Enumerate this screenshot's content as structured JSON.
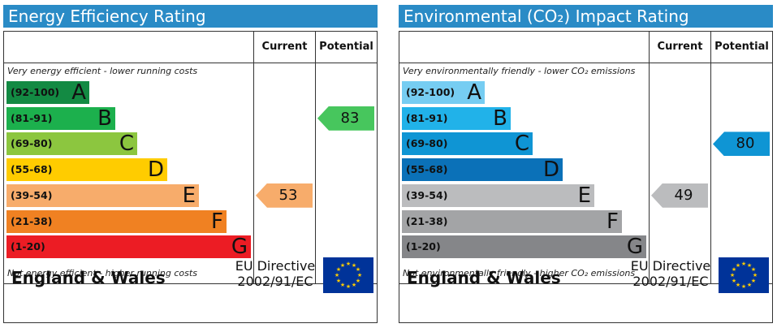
{
  "chart_data": [
    {
      "type": "bar",
      "title": "Energy Efficiency Rating",
      "col_current": "Current",
      "col_potential": "Potential",
      "top_note": "Very energy efficient - lower running costs",
      "bottom_note": "Not energy efficient - higher running costs",
      "categories": [
        "(92-100)",
        "(81-91)",
        "(69-80)",
        "(55-68)",
        "(39-54)",
        "(21-38)",
        "(1-20)"
      ],
      "letters": [
        "A",
        "B",
        "C",
        "D",
        "E",
        "F",
        "G"
      ],
      "band_colors": [
        "#138a43",
        "#1cb04d",
        "#8cc63f",
        "#ffcc00",
        "#f7ac6b",
        "#f08122",
        "#ec1c24"
      ],
      "current": {
        "value": 53,
        "color": "#f7ac6b"
      },
      "potential": {
        "value": 83,
        "color": "#47c65d"
      },
      "region": "England & Wales",
      "directive_line1": "EU Directive",
      "directive_line2": "2002/91/EC"
    },
    {
      "type": "bar",
      "title": "Environmental (CO₂) Impact Rating",
      "col_current": "Current",
      "col_potential": "Potential",
      "top_note": "Very environmentally friendly - lower CO₂ emissions",
      "bottom_note": "Not environmentally friendly - higher CO₂ emissions",
      "categories": [
        "(92-100)",
        "(81-91)",
        "(69-80)",
        "(55-68)",
        "(39-54)",
        "(21-38)",
        "(1-20)"
      ],
      "letters": [
        "A",
        "B",
        "C",
        "D",
        "E",
        "F",
        "G"
      ],
      "band_colors": [
        "#76cdf2",
        "#21b2e9",
        "#0f95d4",
        "#0b71b8",
        "#bbbcbe",
        "#a3a4a6",
        "#858689"
      ],
      "current": {
        "value": 49,
        "color": "#bbbcbe"
      },
      "potential": {
        "value": 80,
        "color": "#0f95d4"
      },
      "region": "England & Wales",
      "directive_line1": "EU Directive",
      "directive_line2": "2002/91/EC"
    }
  ]
}
